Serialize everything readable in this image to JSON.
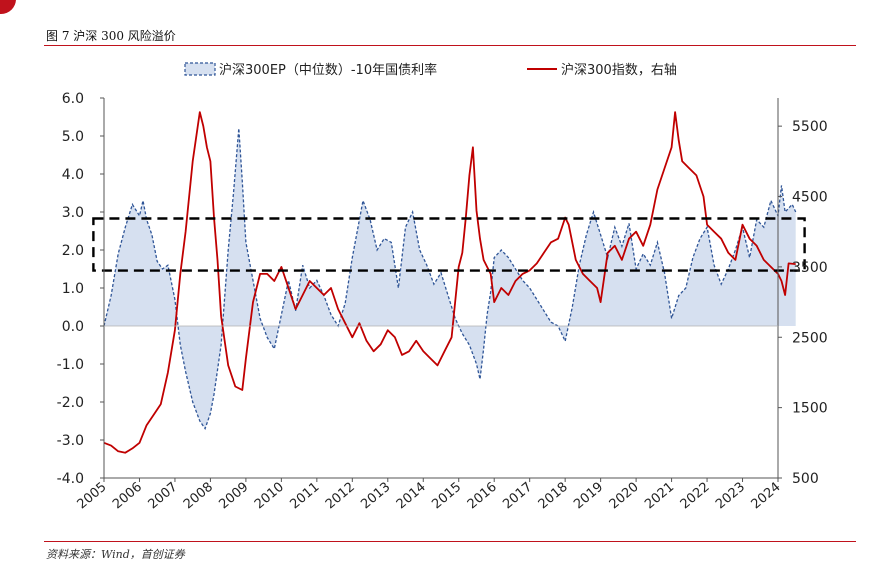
{
  "figure": {
    "title": "图 7 沪深 300 风险溢价",
    "source": "资料来源：Wind，首创证券"
  },
  "colors": {
    "ep_line": "#2f5597",
    "ep_fill": "#d6e0f0",
    "index_line": "#c00000",
    "box": "#000000",
    "axis": "#555555",
    "accent": "#c0121c"
  },
  "chart_data": {
    "type": "line",
    "x_ticks": [
      "2005",
      "2006",
      "2007",
      "2008",
      "2009",
      "2010",
      "2011",
      "2012",
      "2013",
      "2014",
      "2015",
      "2016",
      "2017",
      "2018",
      "2019",
      "2020",
      "2021",
      "2022",
      "2023",
      "2024"
    ],
    "y_left": {
      "min": -4.0,
      "max": 6.0,
      "ticks": [
        "6.0",
        "5.0",
        "4.0",
        "3.0",
        "2.0",
        "1.0",
        "0.0",
        "-1.0",
        "-2.0",
        "-3.0",
        "-4.0"
      ]
    },
    "y_right": {
      "min": 500,
      "max": 5900,
      "ticks": [
        "5500",
        "4500",
        "3500",
        "2500",
        "1500",
        "500"
      ]
    },
    "legend": {
      "placement": "top-center"
    },
    "series": [
      {
        "name": "沪深300EP（中位数）-10年国债利率",
        "axis": "left",
        "style": "dashed-area",
        "x": [
          2005.0,
          2005.2,
          2005.4,
          2005.6,
          2005.8,
          2006.0,
          2006.1,
          2006.2,
          2006.35,
          2006.5,
          2006.65,
          2006.8,
          2007.0,
          2007.15,
          2007.3,
          2007.5,
          2007.7,
          2007.85,
          2008.0,
          2008.1,
          2008.3,
          2008.5,
          2008.65,
          2008.8,
          2008.9,
          2009.0,
          2009.2,
          2009.4,
          2009.6,
          2009.8,
          2010.0,
          2010.2,
          2010.4,
          2010.6,
          2010.8,
          2011.0,
          2011.2,
          2011.4,
          2011.6,
          2011.8,
          2012.0,
          2012.3,
          2012.5,
          2012.7,
          2012.9,
          2013.1,
          2013.3,
          2013.5,
          2013.7,
          2013.9,
          2014.1,
          2014.3,
          2014.5,
          2014.7,
          2014.9,
          2015.1,
          2015.3,
          2015.5,
          2015.6,
          2015.7,
          2015.8,
          2015.9,
          2016.0,
          2016.2,
          2016.4,
          2016.6,
          2016.8,
          2017.0,
          2017.2,
          2017.4,
          2017.6,
          2017.8,
          2018.0,
          2018.2,
          2018.4,
          2018.6,
          2018.8,
          2019.0,
          2019.2,
          2019.4,
          2019.6,
          2019.8,
          2020.0,
          2020.2,
          2020.4,
          2020.6,
          2020.8,
          2021.0,
          2021.2,
          2021.4,
          2021.6,
          2021.8,
          2022.0,
          2022.2,
          2022.4,
          2022.6,
          2022.8,
          2023.0,
          2023.2,
          2023.4,
          2023.6,
          2023.8,
          2024.0,
          2024.1,
          2024.2,
          2024.4,
          2024.5
        ],
        "values": [
          0.0,
          0.8,
          1.9,
          2.6,
          3.2,
          2.9,
          3.3,
          2.8,
          2.4,
          1.7,
          1.5,
          1.6,
          0.7,
          -0.5,
          -1.2,
          -2.0,
          -2.5,
          -2.7,
          -2.3,
          -1.8,
          -0.5,
          2.0,
          3.5,
          5.2,
          3.8,
          2.2,
          1.2,
          0.2,
          -0.3,
          -0.6,
          0.3,
          1.2,
          0.4,
          1.6,
          1.0,
          1.2,
          0.8,
          0.3,
          0.0,
          0.6,
          1.8,
          3.3,
          2.8,
          2.0,
          2.3,
          2.2,
          1.0,
          2.6,
          3.0,
          2.0,
          1.6,
          1.1,
          1.4,
          0.8,
          0.2,
          -0.2,
          -0.5,
          -1.0,
          -1.4,
          -0.6,
          0.3,
          0.9,
          1.8,
          2.0,
          1.8,
          1.5,
          1.2,
          1.0,
          0.7,
          0.4,
          0.1,
          0.0,
          -0.4,
          0.5,
          1.6,
          2.4,
          3.0,
          2.4,
          1.8,
          2.6,
          2.1,
          2.7,
          1.5,
          1.9,
          1.6,
          2.2,
          1.4,
          0.2,
          0.8,
          1.0,
          1.8,
          2.3,
          2.6,
          1.6,
          1.1,
          1.5,
          2.0,
          2.6,
          1.8,
          2.8,
          2.6,
          3.3,
          2.9,
          3.7,
          3.0,
          3.2,
          3.0
        ]
      },
      {
        "name": "沪深300指数，右轴",
        "axis": "right",
        "style": "solid",
        "x": [
          2005.0,
          2005.2,
          2005.4,
          2005.6,
          2005.8,
          2006.0,
          2006.2,
          2006.4,
          2006.6,
          2006.8,
          2007.0,
          2007.15,
          2007.3,
          2007.5,
          2007.7,
          2007.8,
          2007.9,
          2008.0,
          2008.1,
          2008.2,
          2008.3,
          2008.5,
          2008.7,
          2008.9,
          2009.0,
          2009.2,
          2009.4,
          2009.6,
          2009.8,
          2010.0,
          2010.2,
          2010.4,
          2010.6,
          2010.8,
          2011.0,
          2011.2,
          2011.4,
          2011.6,
          2011.8,
          2012.0,
          2012.2,
          2012.4,
          2012.6,
          2012.8,
          2013.0,
          2013.2,
          2013.4,
          2013.6,
          2013.8,
          2014.0,
          2014.2,
          2014.4,
          2014.6,
          2014.8,
          2015.0,
          2015.1,
          2015.2,
          2015.3,
          2015.4,
          2015.5,
          2015.6,
          2015.7,
          2015.8,
          2015.9,
          2016.0,
          2016.2,
          2016.4,
          2016.6,
          2016.8,
          2017.0,
          2017.2,
          2017.4,
          2017.6,
          2017.8,
          2018.0,
          2018.1,
          2018.3,
          2018.5,
          2018.7,
          2018.9,
          2019.0,
          2019.2,
          2019.4,
          2019.6,
          2019.8,
          2020.0,
          2020.2,
          2020.4,
          2020.6,
          2020.8,
          2021.0,
          2021.1,
          2021.2,
          2021.3,
          2021.5,
          2021.7,
          2021.9,
          2022.0,
          2022.2,
          2022.4,
          2022.6,
          2022.8,
          2023.0,
          2023.2,
          2023.4,
          2023.6,
          2023.8,
          2024.0,
          2024.1,
          2024.2,
          2024.3,
          2024.5
        ],
        "values": [
          1000,
          960,
          880,
          860,
          920,
          1000,
          1250,
          1400,
          1550,
          2000,
          2600,
          3400,
          4000,
          5000,
          5700,
          5500,
          5200,
          5000,
          4200,
          3600,
          2800,
          2100,
          1800,
          1750,
          2200,
          3000,
          3400,
          3400,
          3300,
          3500,
          3200,
          2900,
          3100,
          3300,
          3200,
          3100,
          3200,
          2900,
          2700,
          2500,
          2700,
          2450,
          2300,
          2400,
          2600,
          2500,
          2250,
          2300,
          2450,
          2300,
          2200,
          2100,
          2300,
          2500,
          3500,
          3700,
          4200,
          4800,
          5200,
          4300,
          3900,
          3600,
          3500,
          3400,
          3000,
          3200,
          3100,
          3300,
          3400,
          3450,
          3550,
          3700,
          3850,
          3900,
          4200,
          4100,
          3600,
          3400,
          3300,
          3200,
          3000,
          3700,
          3800,
          3600,
          3900,
          4000,
          3800,
          4100,
          4600,
          4900,
          5200,
          5700,
          5300,
          5000,
          4900,
          4800,
          4500,
          4100,
          4000,
          3900,
          3700,
          3600,
          4100,
          3900,
          3800,
          3600,
          3500,
          3400,
          3300,
          3100,
          3550,
          3540
        ]
      }
    ],
    "annotations": [
      {
        "type": "dashed-box",
        "x_from": 2004.7,
        "x_to": 2024.75,
        "y_from_left": 1.46,
        "y_to_left": 2.83
      }
    ]
  }
}
